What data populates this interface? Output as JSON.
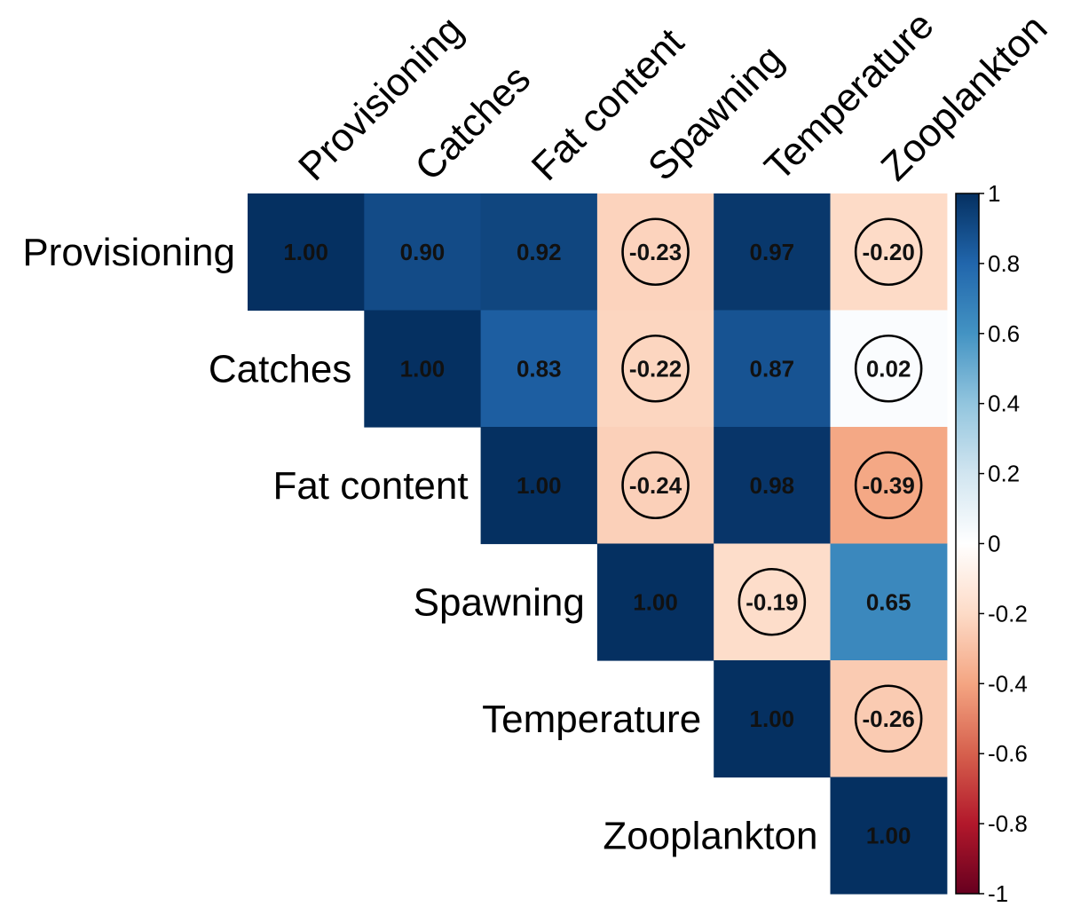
{
  "chart_data": {
    "type": "heatmap",
    "variables": [
      "Provisioning",
      "Catches",
      "Fat content",
      "Spawning",
      "Temperature",
      "Zooplankton"
    ],
    "matrix": [
      [
        1.0,
        0.9,
        0.92,
        -0.23,
        0.97,
        -0.2
      ],
      [
        0.9,
        1.0,
        0.83,
        -0.22,
        0.87,
        0.02
      ],
      [
        0.92,
        0.83,
        1.0,
        -0.24,
        0.98,
        -0.39
      ],
      [
        -0.23,
        -0.22,
        -0.24,
        1.0,
        -0.19,
        0.65
      ],
      [
        0.97,
        0.87,
        0.98,
        -0.19,
        1.0,
        -0.26
      ],
      [
        -0.2,
        0.02,
        -0.39,
        0.65,
        -0.26,
        1.0
      ]
    ],
    "display_triangle": "upper",
    "value_format": "2 decimals",
    "circled_cells": [
      [
        0,
        3
      ],
      [
        0,
        5
      ],
      [
        1,
        3
      ],
      [
        1,
        5
      ],
      [
        2,
        3
      ],
      [
        2,
        5
      ],
      [
        3,
        4
      ],
      [
        4,
        5
      ]
    ],
    "colorbar": {
      "range": [
        -1,
        1
      ],
      "ticks": [
        "1",
        "0.8",
        "0.6",
        "0.4",
        "0.2",
        "0",
        "-0.2",
        "-0.4",
        "-0.6",
        "-0.8",
        "-1"
      ],
      "colors": {
        "-1": "#67001F",
        "-0.8": "#B2182B",
        "-0.6": "#D6604D",
        "-0.4": "#F4A582",
        "-0.2": "#FDDBC7",
        "0": "#FFFFFF",
        "0.2": "#D1E5F0",
        "0.4": "#92C5DE",
        "0.6": "#4393C3",
        "0.8": "#2166AC",
        "1": "#053061"
      }
    }
  }
}
